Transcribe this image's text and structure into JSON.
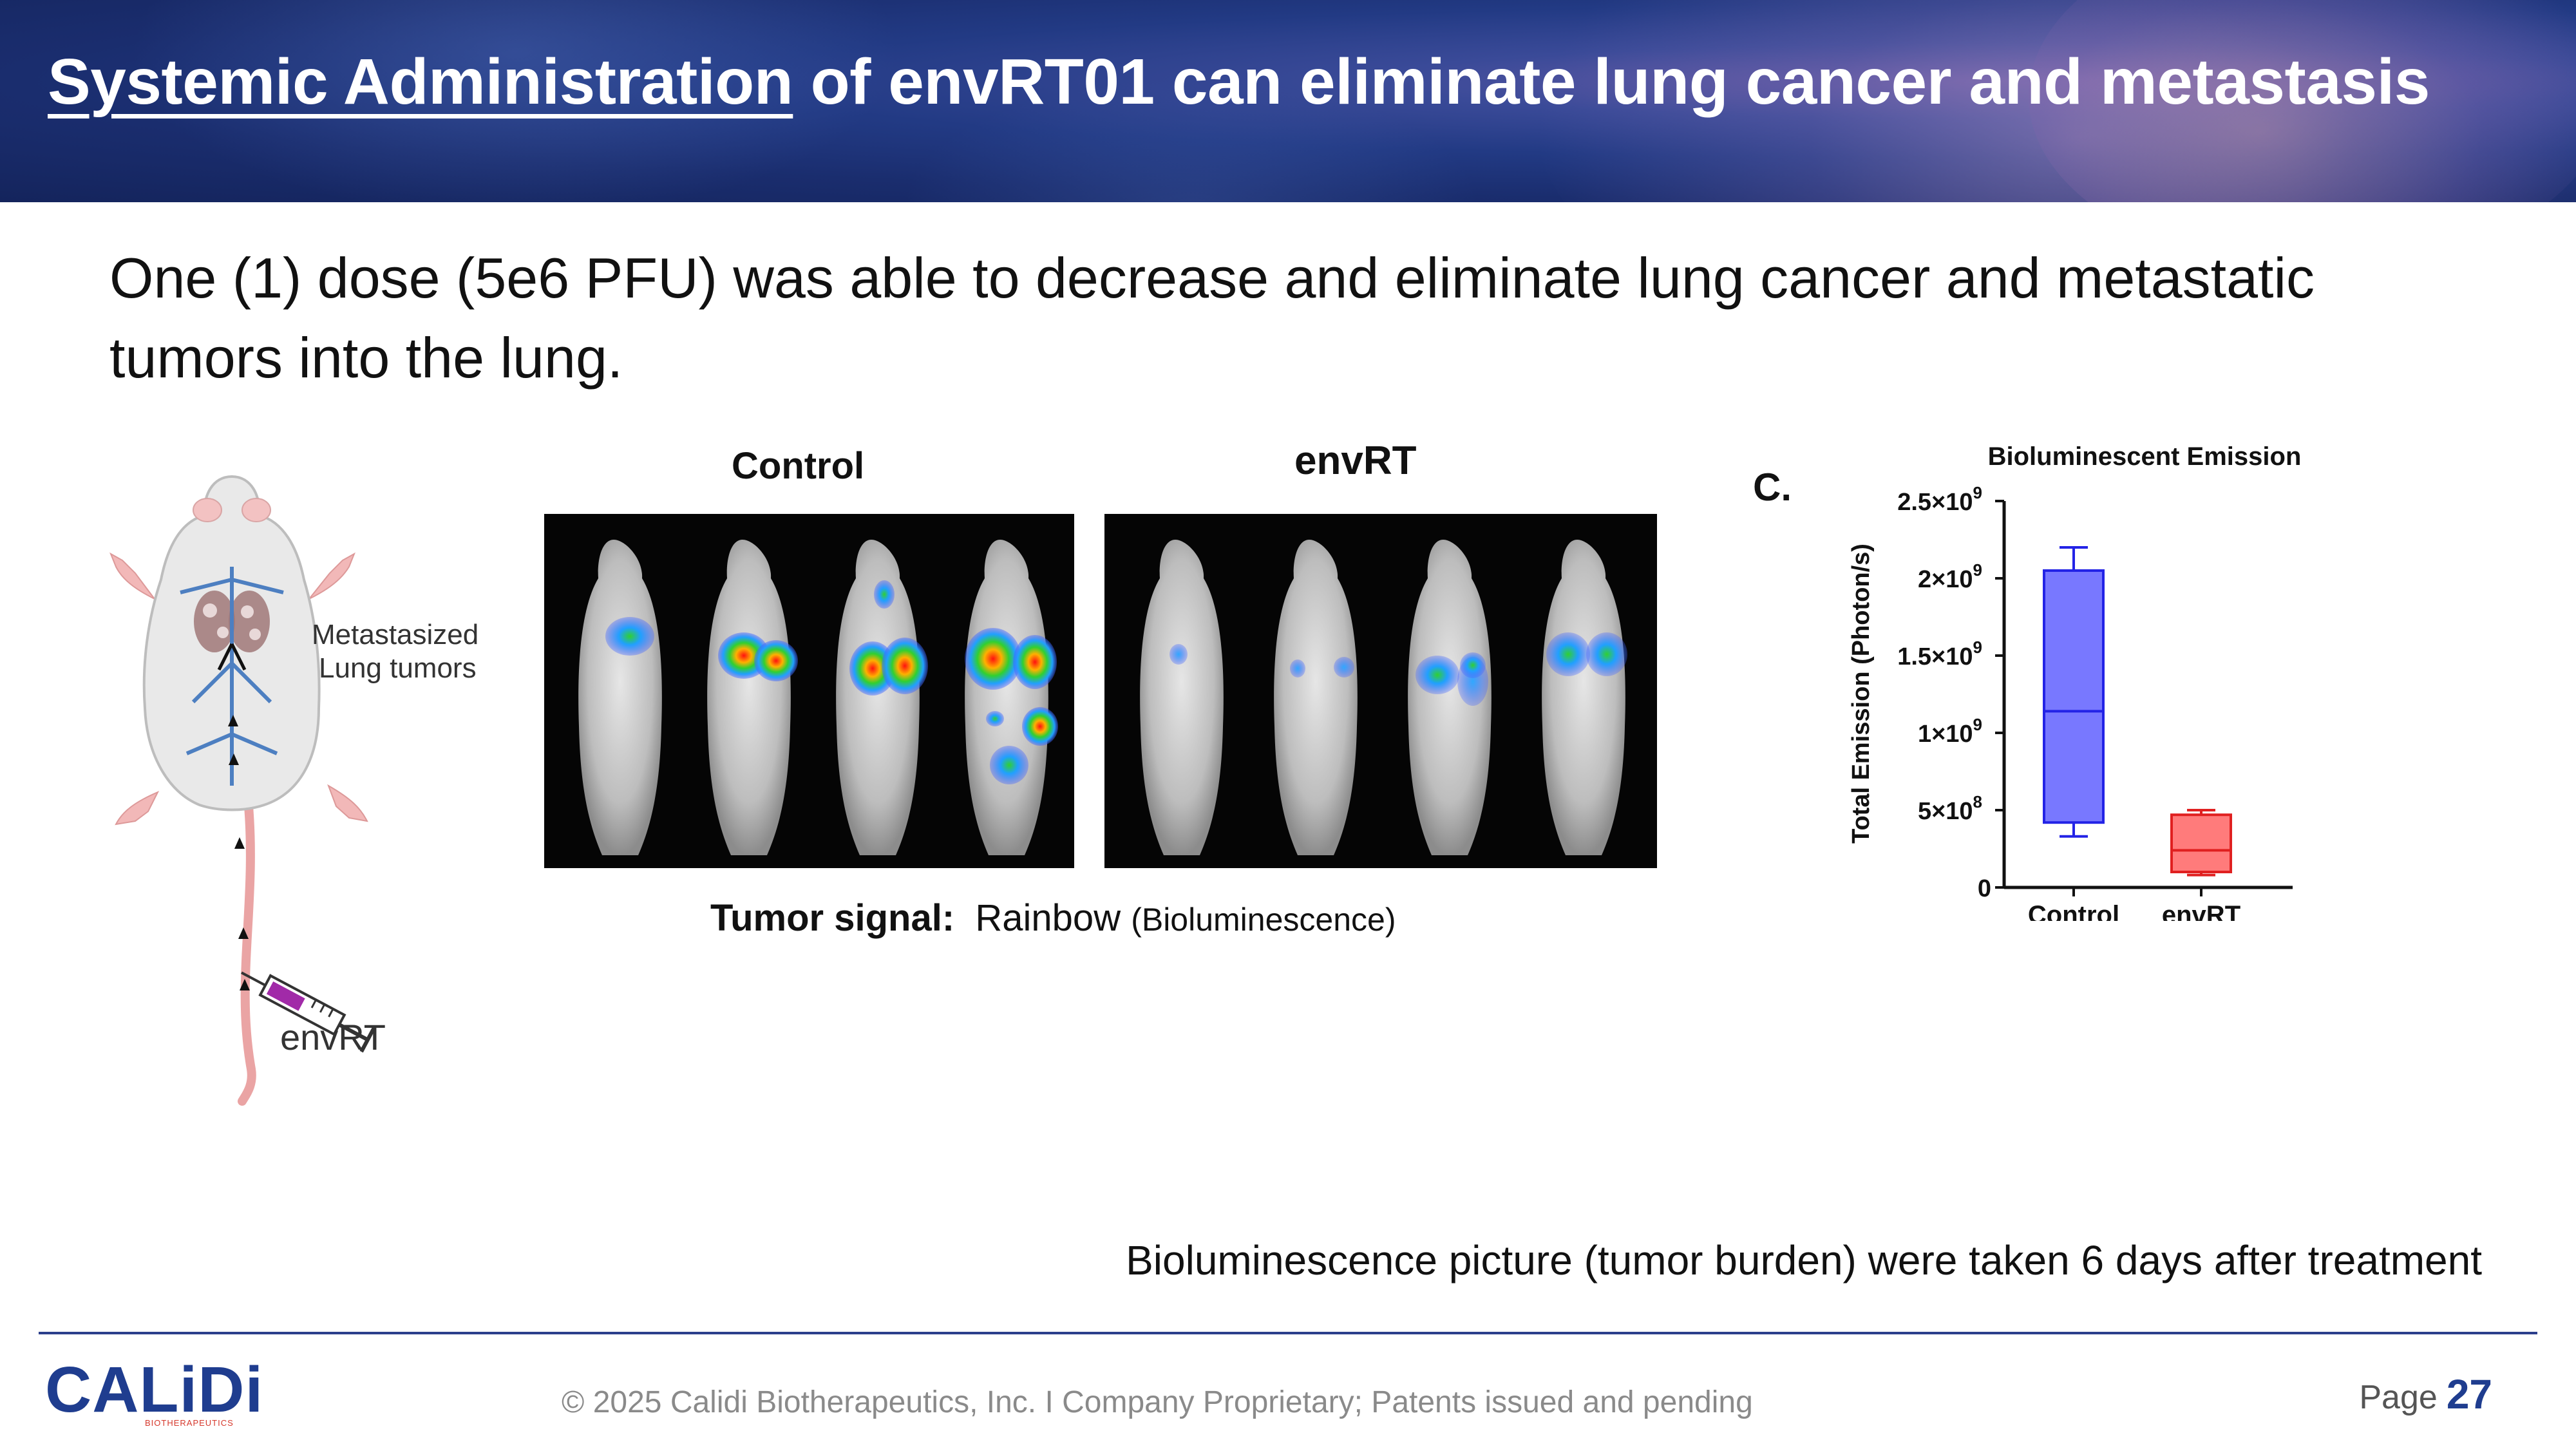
{
  "slide": {
    "title_underlined": "Systemic Administration",
    "title_rest": " of envRT01 can eliminate lung cancer and metastasis",
    "intro": "One (1) dose (5e6 PFU) was able to decrease and eliminate lung cancer and metastatic tumors into the lung.",
    "illustration": {
      "callout": [
        "Metastasized",
        "Lung tumors"
      ],
      "syringe_label": "envRT"
    },
    "imaging": {
      "control_label": "Control",
      "envrt_label": "envRT",
      "signal_label": "Tumor signal:",
      "signal_value": "Rainbow",
      "signal_note": "(Bioluminescence)"
    },
    "panel_letter": "C.",
    "footnote": "Bioluminescence picture (tumor burden) were taken 6 days after treatment"
  },
  "chart_data": {
    "type": "box",
    "title": "Bioluminescent Emission",
    "ylabel": "Total Emission (Photon/s)",
    "xlabel": "",
    "categories": [
      "Control",
      "envRT"
    ],
    "ylim": [
      0,
      2500000000
    ],
    "yticks": [
      0,
      500000000,
      1000000000,
      1500000000,
      2000000000,
      2500000000
    ],
    "ytick_labels": [
      {
        "base": "0",
        "exp": ""
      },
      {
        "base": "5×10",
        "exp": "8"
      },
      {
        "base": "1×10",
        "exp": "9"
      },
      {
        "base": "1.5×10",
        "exp": "9"
      },
      {
        "base": "2×10",
        "exp": "9"
      },
      {
        "base": "2.5×10",
        "exp": "9"
      }
    ],
    "series": [
      {
        "category": "Control",
        "min": 330000000,
        "q1": 420000000,
        "median": 1140000000,
        "q3": 2050000000,
        "max": 2200000000,
        "color": "#7878ff",
        "edge": "#2323e6"
      },
      {
        "category": "envRT",
        "min": 80000000,
        "q1": 100000000,
        "median": 240000000,
        "q3": 470000000,
        "max": 500000000,
        "color": "#ff7b7b",
        "edge": "#e02020"
      }
    ],
    "grid": false,
    "legend": "none"
  },
  "footer": {
    "logo_text": "CALiDi",
    "logo_sub": "BIOTHERAPEUTICS",
    "copyright": "© 2025 Calidi Biotherapeutics, Inc. I  Company Proprietary; Patents issued and pending",
    "page_label": "Page",
    "page_number": "27"
  }
}
